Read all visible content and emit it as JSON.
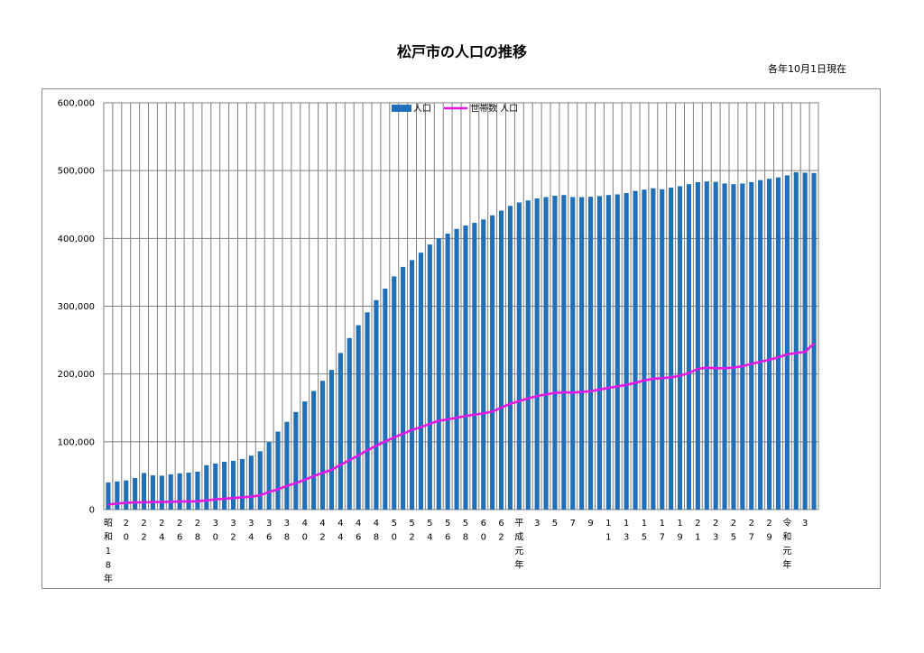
{
  "title": "松戸市の人口の推移",
  "as_of": "各年10月1日現在",
  "colors": {
    "bars": "#1f70b8",
    "line": "#e617e6",
    "grid": "#808080"
  },
  "chart_data": {
    "type": "bar",
    "ylim": [
      0,
      600000
    ],
    "y_ticks": [
      "0",
      "100,000",
      "200,000",
      "300,000",
      "400,000",
      "500,000",
      "600,000"
    ],
    "grid": true,
    "legend_position": "top-center",
    "series": [
      {
        "name": "人口",
        "type": "bar",
        "values": [
          40000,
          41500,
          43000,
          46500,
          54000,
          50500,
          50000,
          52000,
          53500,
          54500,
          56000,
          65500,
          68000,
          70500,
          72000,
          74500,
          79500,
          86000,
          99500,
          115000,
          129500,
          144000,
          159500,
          175000,
          190000,
          206000,
          231000,
          253000,
          272000,
          291000,
          309000,
          326000,
          344000,
          358000,
          368000,
          379000,
          391000,
          400000,
          407000,
          414000,
          419000,
          423000,
          428000,
          434000,
          441000,
          448000,
          453000,
          456000,
          459000,
          461000,
          463000,
          464000,
          461000,
          461000,
          461500,
          462500,
          464000,
          465000,
          467000,
          470000,
          472000,
          474000,
          472500,
          475000,
          477000,
          480000,
          483000,
          484000,
          483500,
          481000,
          480000,
          481000,
          483000,
          486000,
          488000,
          490000,
          493000,
          497500,
          497000,
          496500
        ]
      },
      {
        "name": "世帯数 人口",
        "type": "line",
        "values": [
          7500,
          9000,
          10000,
          10500,
          10800,
          11000,
          11200,
          11500,
          11800,
          12000,
          12200,
          13500,
          15000,
          16000,
          17000,
          18000,
          19000,
          21000,
          26000,
          30000,
          35000,
          39000,
          44000,
          49500,
          54000,
          58500,
          66000,
          73000,
          80000,
          87500,
          94000,
          100500,
          106500,
          112000,
          117500,
          121500,
          126500,
          131000,
          133000,
          135500,
          138000,
          140000,
          142000,
          144500,
          150500,
          156000,
          160000,
          164000,
          167500,
          170000,
          172000,
          173000,
          172500,
          173500,
          174500,
          177000,
          179500,
          181500,
          184000,
          187000,
          190500,
          193000,
          194000,
          195000,
          197500,
          201500,
          207500,
          209500,
          208500,
          208500,
          209500,
          211500,
          215000,
          218000,
          221000,
          224500,
          229000,
          231000,
          232500,
          245000
        ]
      }
    ],
    "x_labels": [
      {
        "i": 0,
        "text": "昭和18年"
      },
      {
        "i": 2,
        "text": "20"
      },
      {
        "i": 4,
        "text": "22"
      },
      {
        "i": 6,
        "text": "24"
      },
      {
        "i": 8,
        "text": "26"
      },
      {
        "i": 10,
        "text": "28"
      },
      {
        "i": 12,
        "text": "30"
      },
      {
        "i": 14,
        "text": "32"
      },
      {
        "i": 16,
        "text": "34"
      },
      {
        "i": 18,
        "text": "36"
      },
      {
        "i": 20,
        "text": "38"
      },
      {
        "i": 22,
        "text": "40"
      },
      {
        "i": 24,
        "text": "42"
      },
      {
        "i": 26,
        "text": "44"
      },
      {
        "i": 28,
        "text": "46"
      },
      {
        "i": 30,
        "text": "48"
      },
      {
        "i": 32,
        "text": "50"
      },
      {
        "i": 34,
        "text": "52"
      },
      {
        "i": 36,
        "text": "54"
      },
      {
        "i": 38,
        "text": "56"
      },
      {
        "i": 40,
        "text": "58"
      },
      {
        "i": 42,
        "text": "60"
      },
      {
        "i": 44,
        "text": "62"
      },
      {
        "i": 46,
        "text": "平成元年"
      },
      {
        "i": 48,
        "text": "3"
      },
      {
        "i": 50,
        "text": "5"
      },
      {
        "i": 52,
        "text": "7"
      },
      {
        "i": 54,
        "text": "9"
      },
      {
        "i": 56,
        "text": "11"
      },
      {
        "i": 58,
        "text": "13"
      },
      {
        "i": 60,
        "text": "15"
      },
      {
        "i": 62,
        "text": "17"
      },
      {
        "i": 64,
        "text": "19"
      },
      {
        "i": 66,
        "text": "21"
      },
      {
        "i": 68,
        "text": "23"
      },
      {
        "i": 70,
        "text": "25"
      },
      {
        "i": 72,
        "text": "27"
      },
      {
        "i": 74,
        "text": "29"
      },
      {
        "i": 76,
        "text": "令和元年"
      },
      {
        "i": 78,
        "text": "3"
      }
    ]
  }
}
